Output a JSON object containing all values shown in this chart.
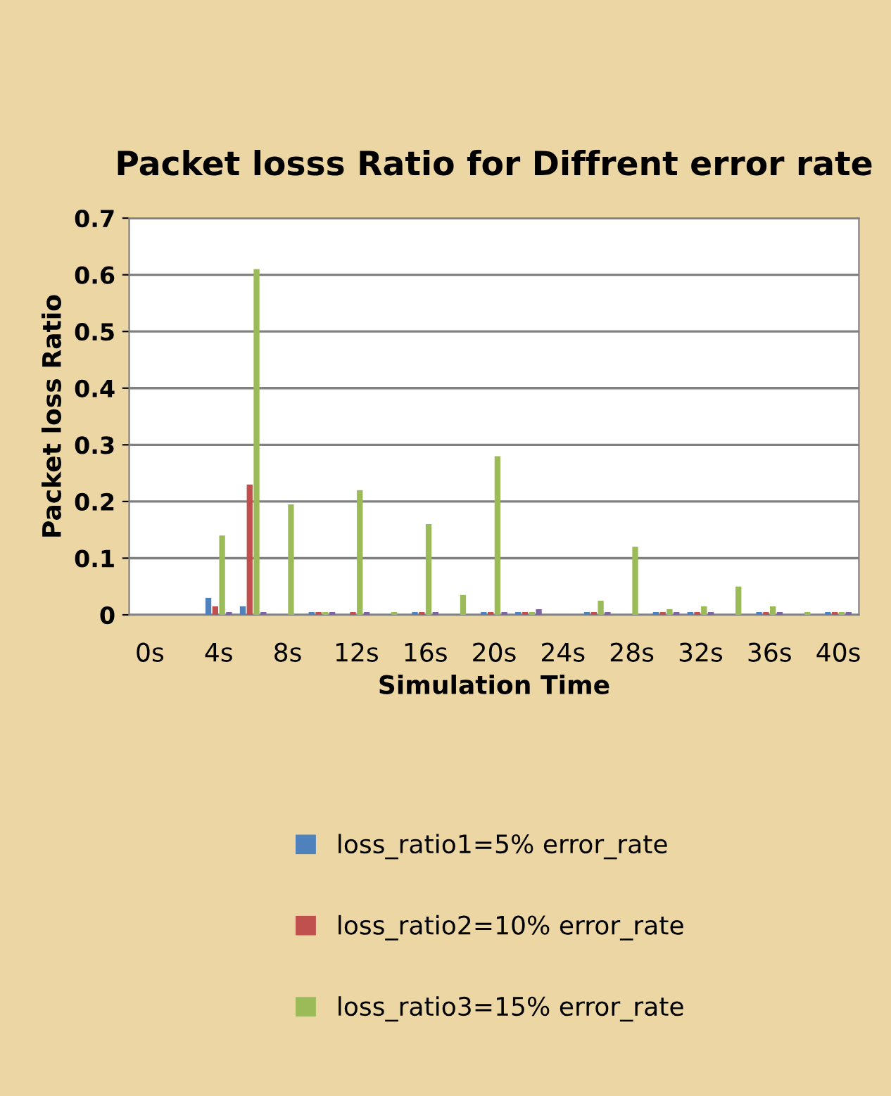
{
  "chart_data": {
    "type": "bar",
    "title": "Packet losss Ratio for Diffrent error rate",
    "xlabel": "Simulation Time",
    "ylabel": "Packet loss Ratio",
    "categories": [
      "0s",
      null,
      "4s",
      null,
      "8s",
      null,
      "12s",
      null,
      "16s",
      null,
      "20s",
      null,
      "24s",
      null,
      "28s",
      null,
      "32s",
      null,
      "36s",
      null,
      "40s"
    ],
    "series": [
      {
        "name": "loss_ratio1=5% error_rate",
        "color": "#4f81bd",
        "values": [
          0,
          0,
          0.03,
          0.015,
          0,
          0.005,
          0,
          0,
          0.005,
          0,
          0.005,
          0.005,
          0,
          0.005,
          0,
          0.005,
          0.005,
          0,
          0.005,
          0,
          0.005
        ]
      },
      {
        "name": "loss_ratio2=10% error_rate",
        "color": "#c0504d",
        "values": [
          0,
          0,
          0.015,
          0.23,
          0,
          0.005,
          0.005,
          0,
          0.005,
          0,
          0.005,
          0.005,
          0,
          0.005,
          0,
          0.005,
          0.005,
          0,
          0.005,
          0,
          0.005
        ]
      },
      {
        "name": "loss_ratio3=15% error_rate",
        "color": "#9bbb59",
        "values": [
          0,
          0,
          0.14,
          0.61,
          0.195,
          0.005,
          0.22,
          0.005,
          0.16,
          0.035,
          0.28,
          0.005,
          0,
          0.025,
          0.12,
          0.01,
          0.015,
          0.05,
          0.015,
          0.005,
          0.005
        ]
      },
      {
        "color": "#8064a2",
        "values": [
          0,
          0,
          0.005,
          0.005,
          0,
          0.005,
          0.005,
          0,
          0.005,
          0,
          0.005,
          0.01,
          0,
          0.005,
          0,
          0.005,
          0.005,
          0,
          0.005,
          0,
          0.005
        ]
      }
    ],
    "ylim": [
      0,
      0.7
    ],
    "yticks": [
      0,
      0.1,
      0.2,
      0.3,
      0.4,
      0.5,
      0.6,
      0.7
    ],
    "grid": "y",
    "legend": "bottom"
  }
}
